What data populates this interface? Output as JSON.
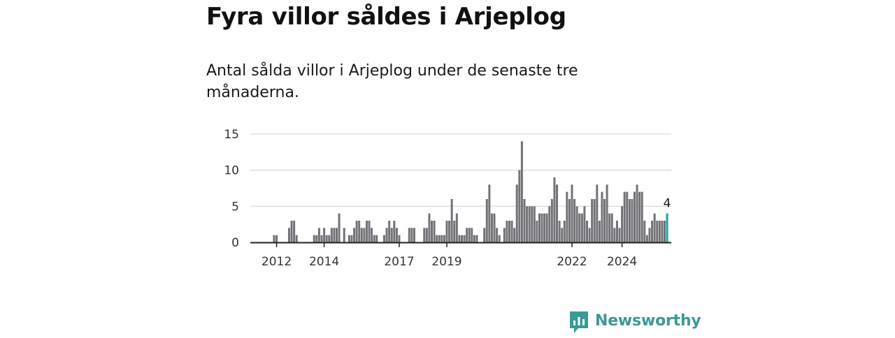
{
  "header": {
    "title": "Fyra villor såldes i Arjeplog",
    "subtitle": "Antal sålda villor i Arjeplog under de senaste tre månaderna."
  },
  "brand": {
    "name": "Newsworthy",
    "icon": "newsworthy-chart-icon"
  },
  "colors": {
    "bar": "#737278",
    "highlight": "#17a39a",
    "grid": "#dddddd",
    "axis": "#222222",
    "brand": "#3a9a94"
  },
  "chart_data": {
    "type": "bar",
    "title": "Fyra villor såldes i Arjeplog",
    "xlabel": "",
    "ylabel": "",
    "ylim": [
      0,
      15
    ],
    "yticks": [
      0,
      5,
      10,
      15
    ],
    "ytick_labels": [
      "0",
      "5",
      "10",
      "15"
    ],
    "xtick_labels": [
      "2012",
      "2014",
      "2017",
      "2019",
      "2022",
      "2024"
    ],
    "xtick_positions": [
      7,
      26,
      56,
      75,
      125,
      145
    ],
    "start": "2011-06",
    "last_label": "4",
    "values": [
      0,
      0,
      0,
      0,
      0,
      0,
      1,
      1,
      0,
      0,
      0,
      0,
      2,
      3,
      3,
      1,
      0,
      0,
      0,
      0,
      0,
      0,
      1,
      1,
      2,
      1,
      2,
      1,
      1,
      2,
      2,
      2,
      4,
      0,
      2,
      0,
      1,
      1,
      2,
      3,
      3,
      2,
      2,
      3,
      3,
      2,
      1,
      1,
      0,
      0,
      1,
      2,
      3,
      2,
      3,
      2,
      1,
      0,
      0,
      0,
      2,
      2,
      2,
      0,
      0,
      0,
      2,
      2,
      4,
      3,
      3,
      1,
      1,
      1,
      1,
      3,
      3,
      6,
      3,
      4,
      1,
      1,
      1,
      2,
      2,
      2,
      1,
      1,
      0,
      0,
      2,
      6,
      8,
      4,
      4,
      2,
      1,
      0,
      2,
      3,
      3,
      3,
      2,
      8,
      10,
      14,
      6,
      5,
      5,
      5,
      5,
      3,
      4,
      4,
      4,
      4,
      5,
      6,
      9,
      8,
      3,
      2,
      3,
      7,
      6,
      8,
      6,
      5,
      4,
      4,
      5,
      3,
      2,
      6,
      6,
      8,
      3,
      7,
      6,
      8,
      4,
      4,
      2,
      3,
      2,
      5,
      7,
      7,
      6,
      6,
      7,
      8,
      7,
      7,
      3,
      1,
      2,
      3,
      4,
      3,
      3,
      3,
      3,
      4
    ],
    "highlight_last": true
  }
}
